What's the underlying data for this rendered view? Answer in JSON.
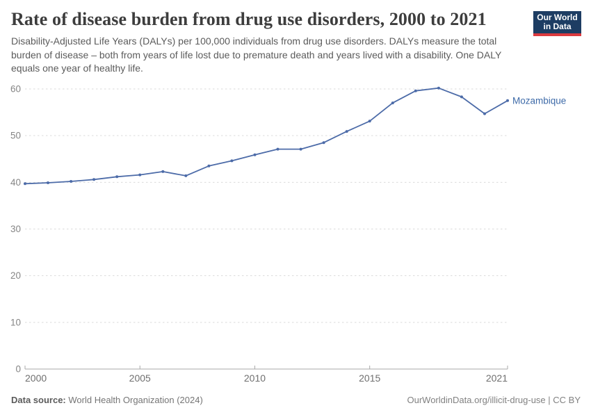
{
  "header": {
    "title": "Rate of disease burden from drug use disorders, 2000 to 2021",
    "subtitle": "Disability-Adjusted Life Years (DALYs) per 100,000 individuals from drug use disorders. DALYs measure the total burden of disease – both from years of life lost due to premature death and years lived with a disability. One DALY equals one year of healthy life.",
    "logo": {
      "line1": "Our World",
      "line2": "in Data"
    }
  },
  "chart_data": {
    "type": "line",
    "title": "Rate of disease burden from drug use disorders, 2000 to 2021",
    "xlabel": "",
    "ylabel": "",
    "x": [
      2000,
      2001,
      2002,
      2003,
      2004,
      2005,
      2006,
      2007,
      2008,
      2009,
      2010,
      2011,
      2012,
      2013,
      2014,
      2015,
      2016,
      2017,
      2018,
      2019,
      2020,
      2021
    ],
    "series": [
      {
        "name": "Mozambique",
        "values": [
          39.7,
          39.9,
          40.2,
          40.6,
          41.2,
          41.6,
          42.3,
          41.4,
          43.5,
          44.6,
          45.9,
          47.1,
          47.1,
          48.5,
          50.9,
          53.1,
          57.0,
          59.6,
          60.2,
          58.3,
          54.7,
          57.5
        ]
      }
    ],
    "xlim": [
      2000,
      2021
    ],
    "ylim": [
      0,
      60
    ],
    "yticks": [
      0,
      10,
      20,
      30,
      40,
      50,
      60
    ],
    "xticks": [
      2000,
      2005,
      2010,
      2015,
      2021
    ],
    "grid": "horizontal-dashed",
    "legend_position": "line-end-label",
    "entity_label": "Mozambique"
  },
  "footer": {
    "datasource_label": "Data source:",
    "datasource_value": "World Health Organization (2024)",
    "credit": "OurWorldinData.org/illicit-drug-use | CC BY"
  },
  "colors": {
    "line": "#4c6ba8",
    "entity_label": "#3d6aa8",
    "grid": "#dadada",
    "axis": "#a8a8a8",
    "y_tick_label": "#858585",
    "x_tick_label": "#6f6f6f",
    "logo_bg": "#1d3d63",
    "logo_stripe": "#dc3a3f"
  }
}
